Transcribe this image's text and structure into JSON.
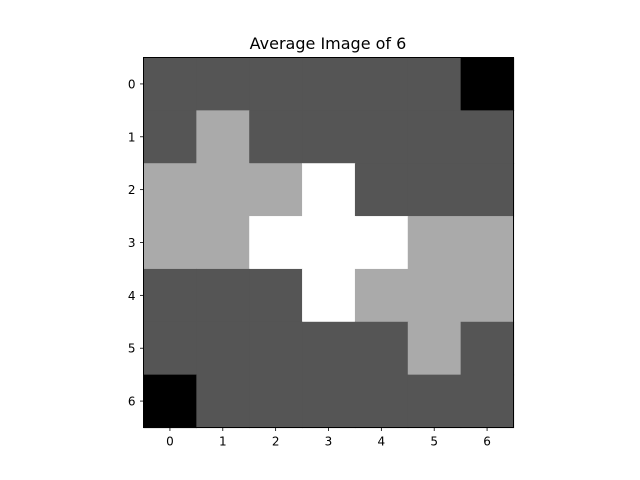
{
  "chart_data": {
    "type": "heatmap",
    "title": "Average Image of 6",
    "xlabel": "",
    "ylabel": "",
    "x_tick_labels": [
      "0",
      "1",
      "2",
      "3",
      "4",
      "5",
      "6"
    ],
    "y_tick_labels": [
      "0",
      "1",
      "2",
      "3",
      "4",
      "5",
      "6"
    ],
    "colormap": "gray",
    "vmin": 0,
    "vmax": 3,
    "grid": false,
    "values": [
      [
        1,
        1,
        1,
        1,
        1,
        1,
        0
      ],
      [
        1,
        2,
        1,
        1,
        1,
        1,
        1
      ],
      [
        2,
        2,
        2,
        3,
        1,
        1,
        1
      ],
      [
        2,
        2,
        3,
        3,
        3,
        2,
        2
      ],
      [
        1,
        1,
        1,
        3,
        2,
        2,
        2
      ],
      [
        1,
        1,
        1,
        1,
        1,
        2,
        1
      ],
      [
        0,
        1,
        1,
        1,
        1,
        1,
        1
      ]
    ]
  }
}
